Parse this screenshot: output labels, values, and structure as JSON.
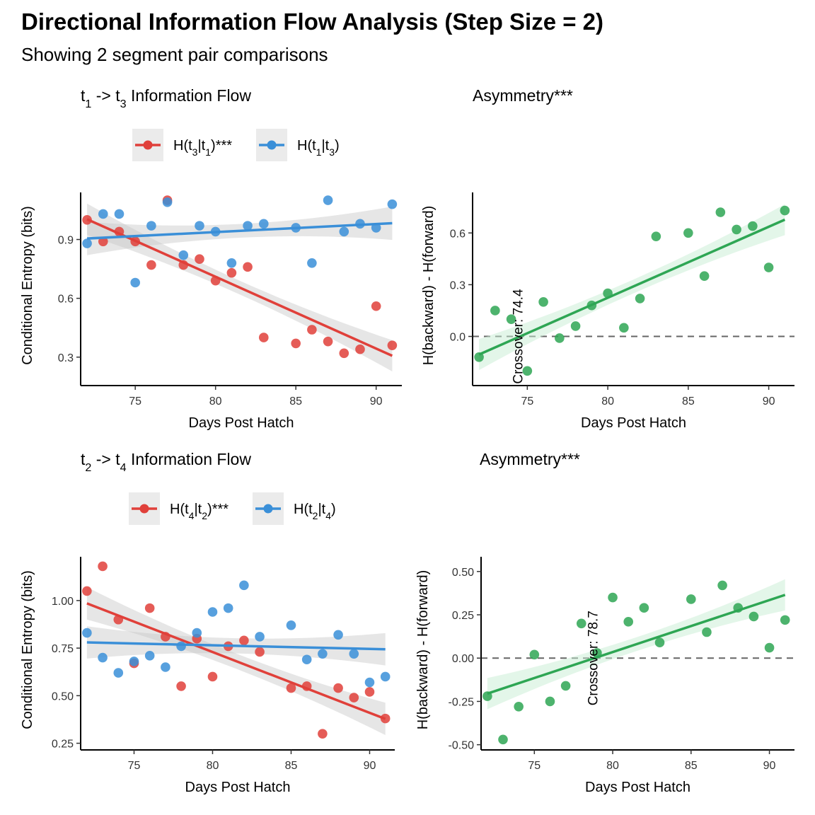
{
  "figure": {
    "title": "Directional Information Flow Analysis (Step Size = 2)",
    "subtitle": "Showing 2 segment pair comparisons"
  },
  "colors": {
    "forward": "#E0403A",
    "backward": "#3A8FD8",
    "asymmetry": "#2EA654",
    "band_gray": "#C8C8C8",
    "band_green": "#C8EED3"
  },
  "chart_data": [
    {
      "id": "p1",
      "type": "scatter",
      "title": "t1 -> t3 Information Flow",
      "xlabel": "Days Post Hatch",
      "ylabel": "Conditional Entropy (bits)",
      "xlim": [
        71.6,
        91.6
      ],
      "ylim": [
        0.155,
        1.14
      ],
      "xticks": [
        75,
        80,
        85,
        90
      ],
      "yticks": [
        0.3,
        0.6,
        0.9
      ],
      "ytick_labels": [
        "0.3",
        "0.6",
        "0.9"
      ],
      "legend": [
        "H(t3|t1)***",
        "H(t1|t3)"
      ],
      "series": [
        {
          "name": "H(t3|t1)***",
          "x": [
            72,
            73,
            74,
            75,
            76,
            77,
            78,
            79,
            80,
            81,
            82,
            83,
            85,
            86,
            87,
            88,
            89,
            90,
            91
          ],
          "y": [
            1.0,
            0.89,
            0.94,
            0.89,
            0.77,
            1.1,
            0.77,
            0.8,
            0.69,
            0.73,
            0.76,
            0.4,
            0.37,
            0.44,
            0.38,
            0.32,
            0.34,
            0.56,
            0.36
          ],
          "fit": [
            1.003,
            0.307
          ],
          "band": [
            0.08,
            0.035,
            0.08
          ]
        },
        {
          "name": "H(t1|t3)",
          "x": [
            72,
            73,
            74,
            75,
            76,
            77,
            78,
            79,
            80,
            81,
            82,
            83,
            85,
            86,
            87,
            88,
            89,
            90,
            91
          ],
          "y": [
            0.88,
            1.03,
            1.03,
            0.68,
            0.97,
            1.09,
            0.82,
            0.97,
            0.94,
            0.78,
            0.97,
            0.98,
            0.96,
            0.78,
            1.1,
            0.94,
            0.98,
            0.96,
            1.08
          ],
          "fit": [
            0.905,
            0.983
          ],
          "band": [
            0.085,
            0.035,
            0.085
          ]
        }
      ]
    },
    {
      "id": "p2",
      "type": "scatter",
      "title": "Asymmetry***",
      "xlabel": "Days Post Hatch",
      "ylabel": "H(backward) - H(forward)",
      "xlim": [
        71.6,
        91.6
      ],
      "ylim": [
        -0.285,
        0.835
      ],
      "xticks": [
        75,
        80,
        85,
        90
      ],
      "yticks": [
        0.0,
        0.3,
        0.6
      ],
      "ytick_labels": [
        "0.0",
        "0.3",
        "0.6"
      ],
      "hline": 0,
      "annotation": {
        "text": "Crossover: 74.4",
        "x": 74.4
      },
      "series": [
        {
          "name": "Asymmetry",
          "x": [
            72,
            73,
            74,
            75,
            76,
            77,
            78,
            79,
            80,
            81,
            82,
            83,
            85,
            86,
            87,
            88,
            89,
            90,
            91
          ],
          "y": [
            -0.12,
            0.15,
            0.1,
            -0.2,
            0.2,
            -0.01,
            0.06,
            0.18,
            0.25,
            0.05,
            0.22,
            0.58,
            0.6,
            0.35,
            0.72,
            0.62,
            0.64,
            0.4,
            0.73
          ],
          "fit": [
            -0.105,
            0.677
          ],
          "band": [
            0.09,
            0.04,
            0.09
          ]
        }
      ]
    },
    {
      "id": "p3",
      "type": "scatter",
      "title": "t2 -> t4 Information Flow",
      "xlabel": "Days Post Hatch",
      "ylabel": "Conditional Entropy (bits)",
      "xlim": [
        71.6,
        91.6
      ],
      "ylim": [
        0.215,
        1.23
      ],
      "xticks": [
        75,
        80,
        85,
        90
      ],
      "yticks": [
        0.25,
        0.5,
        0.75,
        1.0
      ],
      "ytick_labels": [
        "0.25",
        "0.50",
        "0.75",
        "1.00"
      ],
      "legend": [
        "H(t4|t2)***",
        "H(t2|t4)"
      ],
      "series": [
        {
          "name": "H(t4|t2)***",
          "x": [
            72,
            73,
            74,
            75,
            76,
            77,
            78,
            79,
            80,
            81,
            82,
            83,
            85,
            86,
            87,
            88,
            89,
            90,
            91
          ],
          "y": [
            1.05,
            1.18,
            0.9,
            0.67,
            0.96,
            0.81,
            0.55,
            0.8,
            0.6,
            0.76,
            0.79,
            0.73,
            0.54,
            0.55,
            0.3,
            0.54,
            0.49,
            0.52,
            0.38
          ],
          "fit": [
            0.985,
            0.378
          ],
          "band": [
            0.085,
            0.04,
            0.085
          ]
        },
        {
          "name": "H(t2|t4)",
          "x": [
            72,
            73,
            74,
            75,
            76,
            77,
            78,
            79,
            80,
            81,
            82,
            83,
            85,
            86,
            87,
            88,
            89,
            90,
            91
          ],
          "y": [
            0.83,
            0.7,
            0.62,
            0.68,
            0.71,
            0.65,
            0.76,
            0.83,
            0.94,
            0.96,
            1.08,
            0.81,
            0.87,
            0.69,
            0.72,
            0.82,
            0.72,
            0.57,
            0.6
          ],
          "fit": [
            0.78,
            0.744
          ],
          "band": [
            0.085,
            0.04,
            0.085
          ]
        }
      ]
    },
    {
      "id": "p4",
      "type": "scatter",
      "title": "Asymmetry***",
      "xlabel": "Days Post Hatch",
      "ylabel": "H(backward) - H(forward)",
      "xlim": [
        71.6,
        91.6
      ],
      "ylim": [
        -0.53,
        0.585
      ],
      "xticks": [
        75,
        80,
        85,
        90
      ],
      "yticks": [
        -0.5,
        -0.25,
        0.0,
        0.25,
        0.5
      ],
      "ytick_labels": [
        "-0.50",
        "-0.25",
        "0.00",
        "0.25",
        "0.50"
      ],
      "hline": 0,
      "annotation": {
        "text": "Crossover: 78.7",
        "x": 78.7
      },
      "series": [
        {
          "name": "Asymmetry",
          "x": [
            72,
            73,
            74,
            75,
            76,
            77,
            78,
            79,
            80,
            81,
            82,
            83,
            85,
            86,
            87,
            88,
            89,
            90,
            91
          ],
          "y": [
            -0.22,
            -0.47,
            -0.28,
            0.02,
            -0.25,
            -0.16,
            0.2,
            0.03,
            0.35,
            0.21,
            0.29,
            0.09,
            0.34,
            0.15,
            0.42,
            0.29,
            0.24,
            0.06,
            0.22
          ],
          "fit": [
            -0.205,
            0.365
          ],
          "band": [
            0.09,
            0.04,
            0.09
          ]
        }
      ]
    }
  ]
}
